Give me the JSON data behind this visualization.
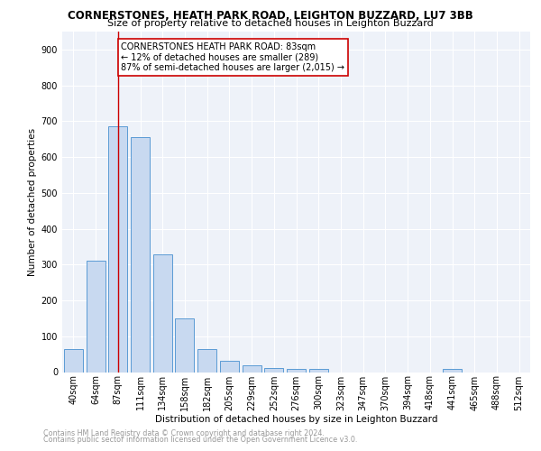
{
  "title1": "CORNERSTONES, HEATH PARK ROAD, LEIGHTON BUZZARD, LU7 3BB",
  "title2": "Size of property relative to detached houses in Leighton Buzzard",
  "xlabel": "Distribution of detached houses by size in Leighton Buzzard",
  "ylabel": "Number of detached properties",
  "footer1": "Contains HM Land Registry data © Crown copyright and database right 2024.",
  "footer2": "Contains public sector information licensed under the Open Government Licence v3.0.",
  "bin_labels": [
    "40sqm",
    "64sqm",
    "87sqm",
    "111sqm",
    "134sqm",
    "158sqm",
    "182sqm",
    "205sqm",
    "229sqm",
    "252sqm",
    "276sqm",
    "300sqm",
    "323sqm",
    "347sqm",
    "370sqm",
    "394sqm",
    "418sqm",
    "441sqm",
    "465sqm",
    "488sqm",
    "512sqm"
  ],
  "bar_values": [
    63,
    310,
    685,
    655,
    328,
    150,
    65,
    32,
    20,
    12,
    10,
    8,
    0,
    0,
    0,
    0,
    0,
    10,
    0,
    0,
    0
  ],
  "bar_color": "#c8d9f0",
  "bar_edge_color": "#5b9bd5",
  "vline_x": 2,
  "vline_color": "#cc0000",
  "annotation_line1": "CORNERSTONES HEATH PARK ROAD: 83sqm",
  "annotation_line2": "← 12% of detached houses are smaller (289)",
  "annotation_line3": "87% of semi-detached houses are larger (2,015) →",
  "annotation_box_edge": "#cc0000",
  "ylim": [
    0,
    950
  ],
  "yticks": [
    0,
    100,
    200,
    300,
    400,
    500,
    600,
    700,
    800,
    900
  ],
  "background_color": "#eef2f9",
  "grid_color": "#ffffff",
  "title1_fontsize": 8.5,
  "title2_fontsize": 8.0,
  "ylabel_fontsize": 7.5,
  "xlabel_fontsize": 7.5,
  "tick_fontsize": 7.0,
  "footer_fontsize": 5.8,
  "ann_fontsize": 7.0
}
